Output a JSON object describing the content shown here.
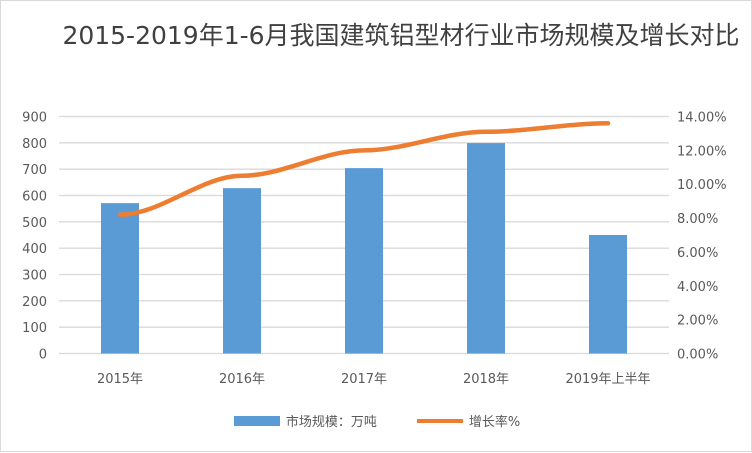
{
  "chart_data": {
    "type": "bar+line",
    "title": "2015-2019年1-6月我国建筑铝型材行业市场规模及增长对比",
    "categories": [
      "2015年",
      "2016年",
      "2017年",
      "2018年",
      "2019年上半年"
    ],
    "series": [
      {
        "name": "市场规模：万吨",
        "type": "bar",
        "axis": "left",
        "color": "#5b9bd5",
        "values": [
          571,
          628,
          704,
          799,
          450
        ]
      },
      {
        "name": "增长率%",
        "type": "line",
        "axis": "right",
        "color": "#ed7d31",
        "values": [
          8.2,
          10.5,
          12.0,
          13.1,
          13.6
        ]
      }
    ],
    "left_axis": {
      "ylim": [
        0,
        900
      ],
      "ticks": [
        "0",
        "100",
        "200",
        "300",
        "400",
        "500",
        "600",
        "700",
        "800",
        "900"
      ]
    },
    "right_axis": {
      "ylim": [
        0,
        14
      ],
      "ticks": [
        "0.00%",
        "2.00%",
        "4.00%",
        "6.00%",
        "8.00%",
        "10.00%",
        "12.00%",
        "14.00%"
      ]
    },
    "grid": true,
    "legend": "bottom"
  }
}
